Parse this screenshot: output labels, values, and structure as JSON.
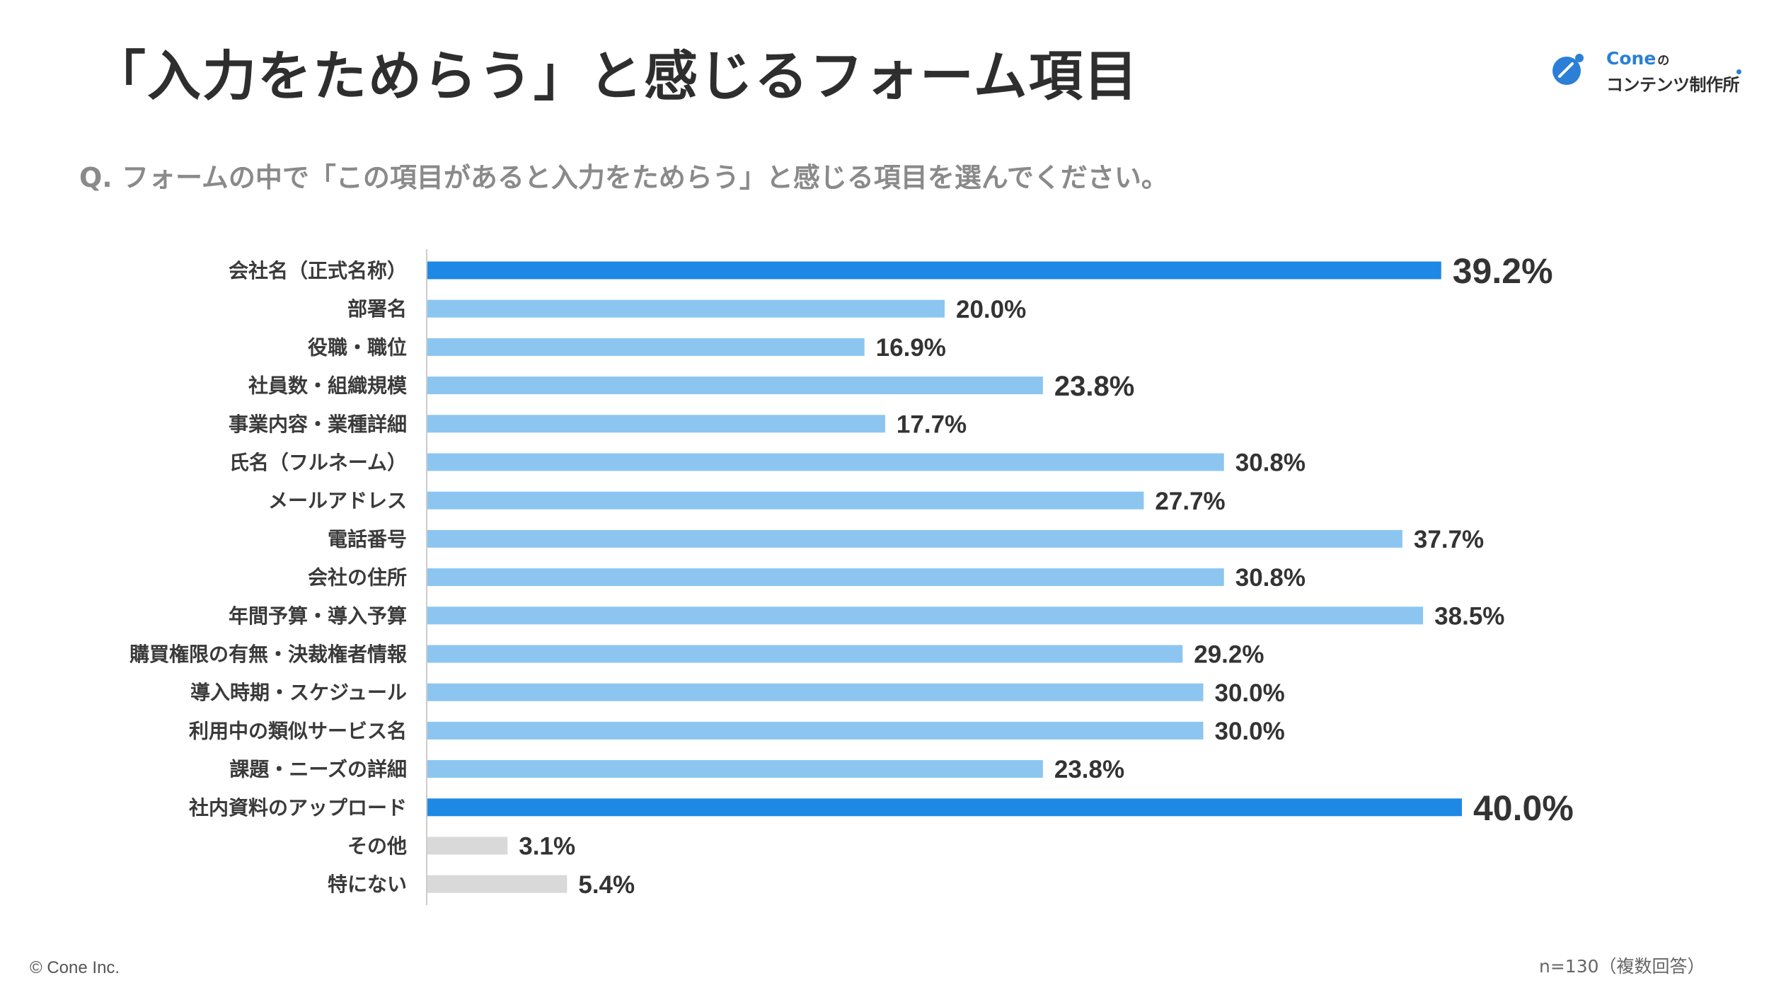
{
  "header": {
    "title": "「入力をためらう」と感じるフォーム項目"
  },
  "logo": {
    "name": "Cone",
    "suffix": "の",
    "subtitle": "コンテンツ制作所"
  },
  "question": "Q. フォームの中で「この項目があると入力をためらう」と感じる項目を選んでください。",
  "footer": {
    "copyright": "© Cone Inc.",
    "sample_note": "n=130（複数回答）"
  },
  "colors": {
    "highlight": "#1e88e5",
    "normal": "#8cc6f0",
    "other": "#d9d9d9",
    "axis": "#cccccc"
  },
  "chart_data": {
    "type": "bar",
    "orientation": "horizontal",
    "title": "「入力をためらう」と感じるフォーム項目",
    "xlabel": "",
    "ylabel": "",
    "xlim": [
      0,
      40
    ],
    "unit": "%",
    "categories": [
      "会社名（正式名称）",
      "部署名",
      "役職・職位",
      "社員数・組織規模",
      "事業内容・業種詳細",
      "氏名（フルネーム）",
      "メールアドレス",
      "電話番号",
      "会社の住所",
      "年間予算・導入予算",
      "購買権限の有無・決裁権者情報",
      "導入時期・スケジュール",
      "利用中の類似サービス名",
      "課題・ニーズの詳細",
      "社内資料のアップロード",
      "その他",
      "特にない"
    ],
    "values": [
      39.2,
      20.0,
      16.9,
      23.8,
      17.7,
      30.8,
      27.7,
      37.7,
      30.8,
      38.5,
      29.2,
      30.0,
      30.0,
      23.8,
      40.0,
      3.1,
      5.4
    ],
    "labels": [
      "39.2%",
      "20.0%",
      "16.9%",
      "23.8%",
      "17.7%",
      "30.8%",
      "27.7%",
      "37.7%",
      "30.8%",
      "38.5%",
      "29.2%",
      "30.0%",
      "30.0%",
      "23.8%",
      "40.0%",
      "3.1%",
      "5.4%"
    ],
    "styles": [
      "highlight",
      "normal",
      "normal",
      "normal",
      "normal",
      "normal",
      "normal",
      "normal",
      "normal",
      "normal",
      "normal",
      "normal",
      "normal",
      "normal",
      "highlight",
      "other",
      "other"
    ],
    "emphasis": [
      "large",
      "normal",
      "normal",
      "medium",
      "normal",
      "normal",
      "normal",
      "normal",
      "normal",
      "normal",
      "normal",
      "normal",
      "normal",
      "normal",
      "large",
      "normal",
      "normal"
    ]
  }
}
